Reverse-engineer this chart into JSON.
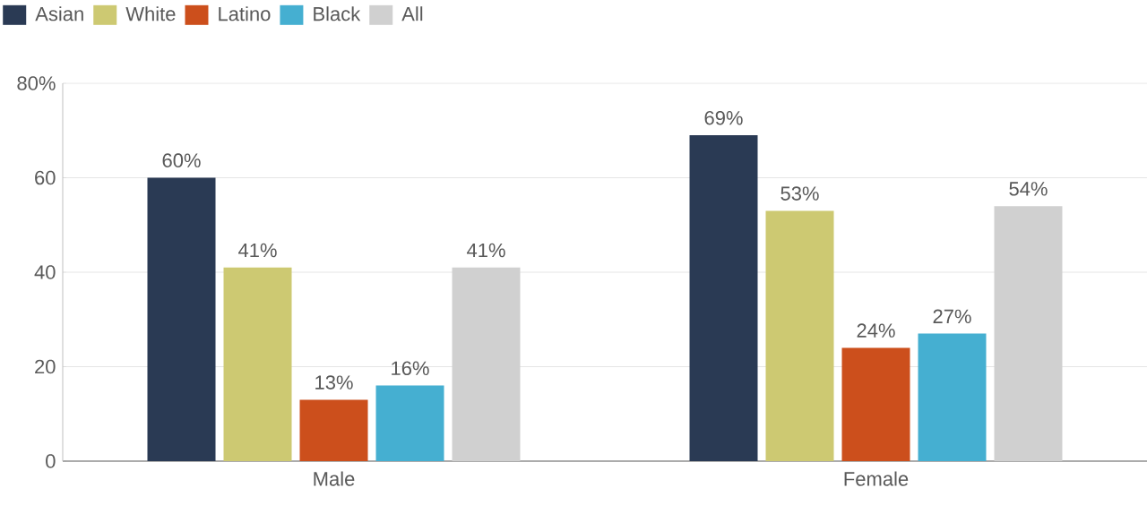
{
  "chart_data": {
    "type": "bar",
    "categories": [
      "Male",
      "Female"
    ],
    "series": [
      {
        "name": "Asian",
        "color": "#2a3a54",
        "values": [
          60,
          69
        ],
        "value_labels": [
          "60%",
          "69%"
        ]
      },
      {
        "name": "White",
        "color": "#cdc972",
        "values": [
          41,
          53
        ],
        "value_labels": [
          "41%",
          "53%"
        ]
      },
      {
        "name": "Latino",
        "color": "#cc4f1c",
        "values": [
          13,
          24
        ],
        "value_labels": [
          "13%",
          "24%"
        ]
      },
      {
        "name": "Black",
        "color": "#45afd1",
        "values": [
          16,
          27
        ],
        "value_labels": [
          "16%",
          "27%"
        ]
      },
      {
        "name": "All",
        "color": "#d0d0d0",
        "values": [
          41,
          54
        ],
        "value_labels": [
          "41%",
          "54%"
        ]
      }
    ],
    "ylim": [
      0,
      80
    ],
    "yticks": [
      0,
      20,
      40,
      60,
      {
        "value": 80,
        "label": "80%"
      }
    ],
    "grid": "y",
    "legend": "top left"
  }
}
